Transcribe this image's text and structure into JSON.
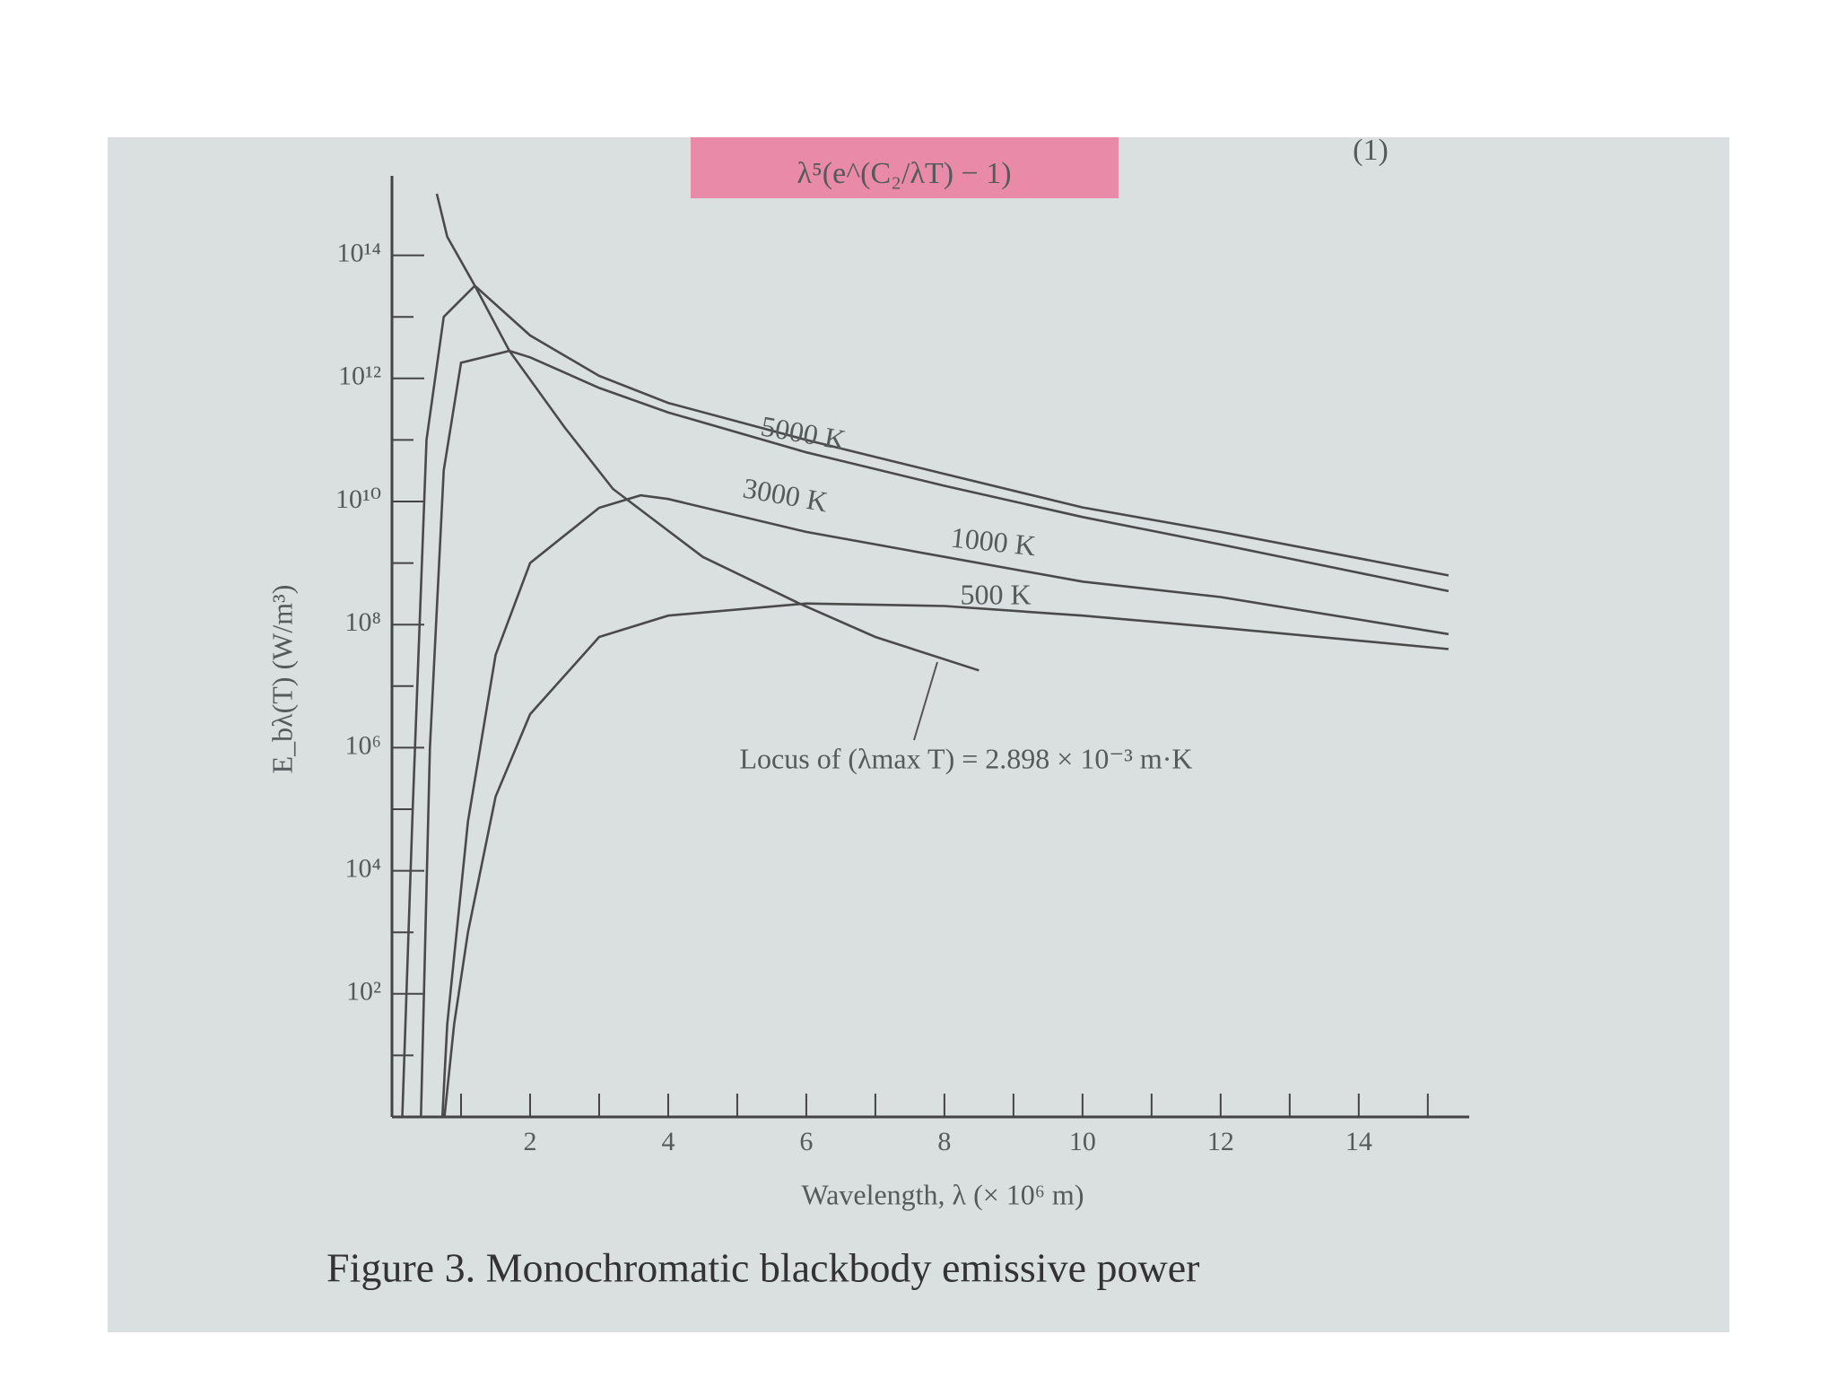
{
  "chart_data": {
    "type": "line",
    "header_fragment": "λ⁵(e^(C₂/λT) − 1)",
    "equation_number": "(1)",
    "caption": "Figure 3.  Monochromatic blackbody emissive power",
    "x_label": "Wavelength, λ (× 10⁶ m)",
    "y_label": "E_bλ(T) (W/m³)",
    "log_y": true,
    "xlim": [
      0,
      15.6
    ],
    "ylim": [
      1,
      1000000000000000.0
    ],
    "xticks": [
      2,
      4,
      6,
      8,
      10,
      12,
      14
    ],
    "x_minor_ticks": [
      1,
      3,
      5,
      7,
      9,
      11,
      13,
      15
    ],
    "yticks": [
      {
        "value": 100,
        "label": "10²"
      },
      {
        "value": 10000,
        "label": "10⁴"
      },
      {
        "value": 1000000,
        "label": "10⁶"
      },
      {
        "value": 100000000,
        "label": "10⁸"
      },
      {
        "value": 10000000000,
        "label": "10¹⁰"
      },
      {
        "value": 1000000000000,
        "label": "10¹²"
      },
      {
        "value": 100000000000000,
        "label": "10¹⁴"
      }
    ],
    "y_minor_ticks": [
      10,
      1000,
      100000,
      10000000,
      1000000000,
      100000000000,
      10000000000000
    ],
    "series": [
      {
        "name": "5000 K",
        "color": "#4a4a4a",
        "x": [
          0.15,
          0.3,
          0.5,
          0.75,
          1.2,
          2,
          3,
          4,
          6,
          8,
          10,
          12,
          15.3
        ],
        "values": [
          1,
          100000.0,
          100000000000.0,
          10000000000000.0,
          32000000000000.0,
          5000000000000.0,
          1100000000000.0,
          400000000000.0,
          100000000000.0,
          28000000000.0,
          8000000000.0,
          3200000000.0,
          630000000.0
        ]
      },
      {
        "name": "3000 K",
        "color": "#4a4a4a",
        "x": [
          0.42,
          0.55,
          0.75,
          1,
          1.7,
          2,
          3,
          4,
          6,
          8,
          10,
          12,
          15.3
        ],
        "values": [
          1,
          1000000.0,
          32000000000.0,
          1800000000000.0,
          2800000000000.0,
          2200000000000.0,
          700000000000.0,
          280000000000.0,
          63000000000.0,
          18000000000.0,
          5600000000.0,
          2000000000.0,
          350000000.0
        ]
      },
      {
        "name": "1000 K",
        "color": "#4a4a4a",
        "x": [
          0.73,
          0.8,
          1.1,
          1.5,
          2,
          3,
          3.6,
          4,
          6,
          8,
          10,
          12,
          15.3
        ],
        "values": [
          1,
          32,
          63000.0,
          32000000.0,
          1000000000.0,
          7900000000.0,
          12600000000.0,
          11000000000.0,
          3200000000.0,
          1260000000.0,
          500000000.0,
          280000000.0,
          70000000.0
        ]
      },
      {
        "name": "500 K",
        "color": "#4a4a4a",
        "x": [
          0.76,
          0.9,
          1.1,
          1.5,
          2,
          3,
          4,
          6,
          8,
          10,
          12,
          15.3
        ],
        "values": [
          1,
          32,
          1000,
          160000.0,
          3500000.0,
          63000000.0,
          140000000.0,
          220000000.0,
          200000000.0,
          140000000.0,
          89000000.0,
          40000000.0
        ]
      },
      {
        "name": "Locus of (λmax T) = 2.898 × 10⁻³ m·K",
        "color": "#4a4a4a",
        "x": [
          0.65,
          0.8,
          1.2,
          1.7,
          2.5,
          3.2,
          4.5,
          5.9,
          7,
          8.5
        ],
        "values": [
          1000000000000000.0,
          200000000000000.0,
          32000000000000.0,
          2800000000000.0,
          160000000000.0,
          16000000000.0,
          1260000000.0,
          220000000.0,
          63000000.0,
          18000000.0
        ]
      }
    ]
  }
}
